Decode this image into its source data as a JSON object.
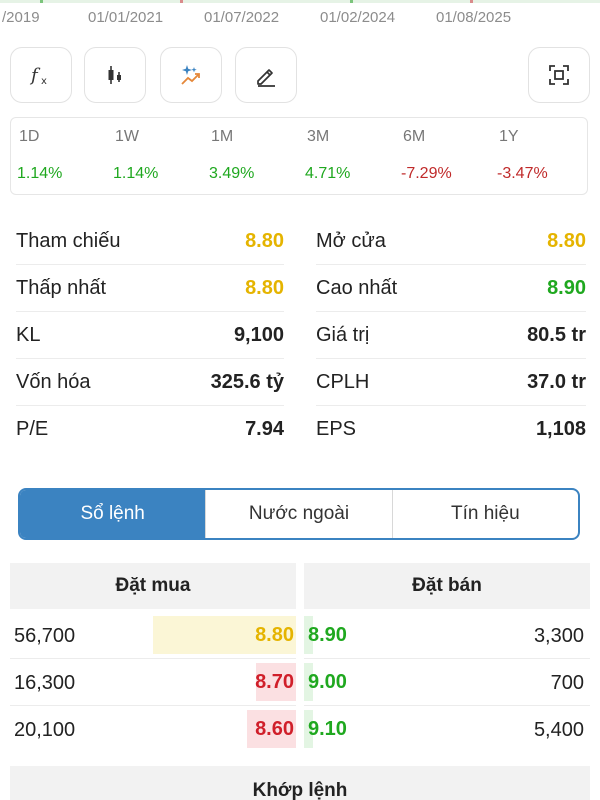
{
  "axis": {
    "ticks": [
      "/2019",
      "01/01/2021",
      "01/07/2022",
      "01/02/2024",
      "01/08/2025"
    ]
  },
  "toolbar": {
    "buttons": [
      {
        "name": "function-icon",
        "glyph": "fx"
      },
      {
        "name": "candlestick-icon"
      },
      {
        "name": "magic-chart-icon"
      },
      {
        "name": "pencil-icon"
      },
      {
        "name": "fullscreen-icon"
      }
    ]
  },
  "periods": [
    {
      "label": "1D",
      "value": "1.14%",
      "trend": "up"
    },
    {
      "label": "1W",
      "value": "1.14%",
      "trend": "up"
    },
    {
      "label": "1M",
      "value": "3.49%",
      "trend": "up"
    },
    {
      "label": "3M",
      "value": "4.71%",
      "trend": "up"
    },
    {
      "label": "6M",
      "value": "-7.29%",
      "trend": "down"
    },
    {
      "label": "1Y",
      "value": "-3.47%",
      "trend": "down"
    }
  ],
  "stats": {
    "rows": [
      {
        "l_label": "Tham chiếu",
        "l_value": "8.80",
        "l_color": "#e5b400",
        "r_label": "Mở cửa",
        "r_value": "8.80",
        "r_color": "#e5b400"
      },
      {
        "l_label": "Thấp nhất",
        "l_value": "8.80",
        "l_color": "#e5b400",
        "r_label": "Cao nhất",
        "r_value": "8.90",
        "r_color": "#1fa81f"
      },
      {
        "l_label": "KL",
        "l_value": "9,100",
        "l_color": "#222222",
        "r_label": "Giá trị",
        "r_value": "80.5 tr",
        "r_color": "#222222"
      },
      {
        "l_label": "Vốn hóa",
        "l_value": "325.6 tỷ",
        "l_color": "#222222",
        "r_label": "CPLH",
        "r_value": "37.0 tr",
        "r_color": "#222222"
      },
      {
        "l_label": "P/E",
        "l_value": "7.94",
        "l_color": "#222222",
        "r_label": "EPS",
        "r_value": "1,108",
        "r_color": "#222222"
      }
    ]
  },
  "tabs": [
    {
      "label": "Sổ lệnh",
      "active": true
    },
    {
      "label": "Nước ngoài",
      "active": false
    },
    {
      "label": "Tín hiệu",
      "active": false
    }
  ],
  "order_book": {
    "buy_title": "Đặt mua",
    "sell_title": "Đặt bán",
    "rows": [
      {
        "buy_volume": "56,700",
        "buy_price": "8.80",
        "buy_color": "#e5b400",
        "buy_bar_color": "#fbf6d6",
        "buy_fill": 0.5,
        "sell_price": "8.90",
        "sell_color": "#1fa81f",
        "sell_bar_color": "#e3f5e3",
        "sell_fill": 0.03,
        "sell_volume": "3,300"
      },
      {
        "buy_volume": "16,300",
        "buy_price": "8.70",
        "buy_color": "#d01f2a",
        "buy_bar_color": "#fbe0e2",
        "buy_fill": 0.14,
        "sell_price": "9.00",
        "sell_color": "#1fa81f",
        "sell_bar_color": "#e3f5e3",
        "sell_fill": 0.03,
        "sell_volume": "700"
      },
      {
        "buy_volume": "20,100",
        "buy_price": "8.60",
        "buy_color": "#d01f2a",
        "buy_bar_color": "#fbe0e2",
        "buy_fill": 0.17,
        "sell_price": "9.10",
        "sell_color": "#1fa81f",
        "sell_bar_color": "#e3f5e3",
        "sell_fill": 0.03,
        "sell_volume": "5,400"
      }
    ]
  },
  "match": {
    "title": "Khớp lệnh"
  },
  "colors": {
    "up": "#1fa81f",
    "down": "#c02a2a",
    "accent": "#3b83c1"
  }
}
